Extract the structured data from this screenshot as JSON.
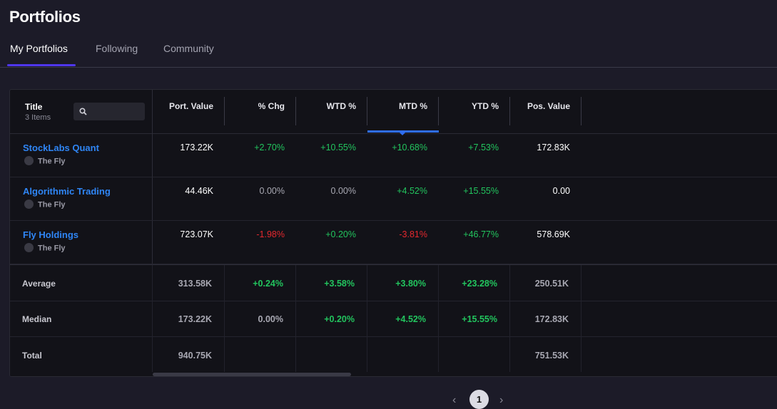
{
  "page": {
    "title": "Portfolios"
  },
  "tabs": [
    {
      "label": "My Portfolios",
      "active": true
    },
    {
      "label": "Following",
      "active": false
    },
    {
      "label": "Community",
      "active": false
    }
  ],
  "table": {
    "title_header": "Title",
    "item_count": "3 Items",
    "search": {
      "placeholder": "",
      "value": ""
    },
    "columns": [
      "Port. Value",
      "% Chg",
      "WTD %",
      "MTD %",
      "YTD %",
      "Pos. Value"
    ],
    "sorted_column": "MTD %",
    "rows": [
      {
        "name": "StockLabs Quant",
        "source": "The Fly",
        "port_value": "173.22K",
        "chg": "+2.70%",
        "wtd": "+10.55%",
        "mtd": "+10.68%",
        "ytd": "+7.53%",
        "pos_value": "172.83K"
      },
      {
        "name": "Algorithmic Trading",
        "source": "The Fly",
        "port_value": "44.46K",
        "chg": "0.00%",
        "wtd": "0.00%",
        "mtd": "+4.52%",
        "ytd": "+15.55%",
        "pos_value": "0.00"
      },
      {
        "name": "Fly Holdings",
        "source": "The Fly",
        "port_value": "723.07K",
        "chg": "-1.98%",
        "wtd": "+0.20%",
        "mtd": "-3.81%",
        "ytd": "+46.77%",
        "pos_value": "578.69K"
      }
    ],
    "summary": [
      {
        "label": "Average",
        "port_value": "313.58K",
        "chg": "+0.24%",
        "wtd": "+3.58%",
        "mtd": "+3.80%",
        "ytd": "+23.28%",
        "pos_value": "250.51K"
      },
      {
        "label": "Median",
        "port_value": "173.22K",
        "chg": "0.00%",
        "wtd": "+0.20%",
        "mtd": "+4.52%",
        "ytd": "+15.55%",
        "pos_value": "172.83K"
      },
      {
        "label": "Total",
        "port_value": "940.75K",
        "chg": "",
        "wtd": "",
        "mtd": "",
        "ytd": "",
        "pos_value": "751.53K"
      }
    ]
  },
  "pagination": {
    "current_page": "1",
    "prev": "‹",
    "next": "›"
  },
  "colors": {
    "accent": "#4f37f0",
    "link": "#2f86f6",
    "positive": "#22c55e",
    "negative": "#e5282e",
    "sort_indicator": "#2f6ef2"
  },
  "icons": {
    "search": "search-icon",
    "source": "the-fly-icon"
  }
}
